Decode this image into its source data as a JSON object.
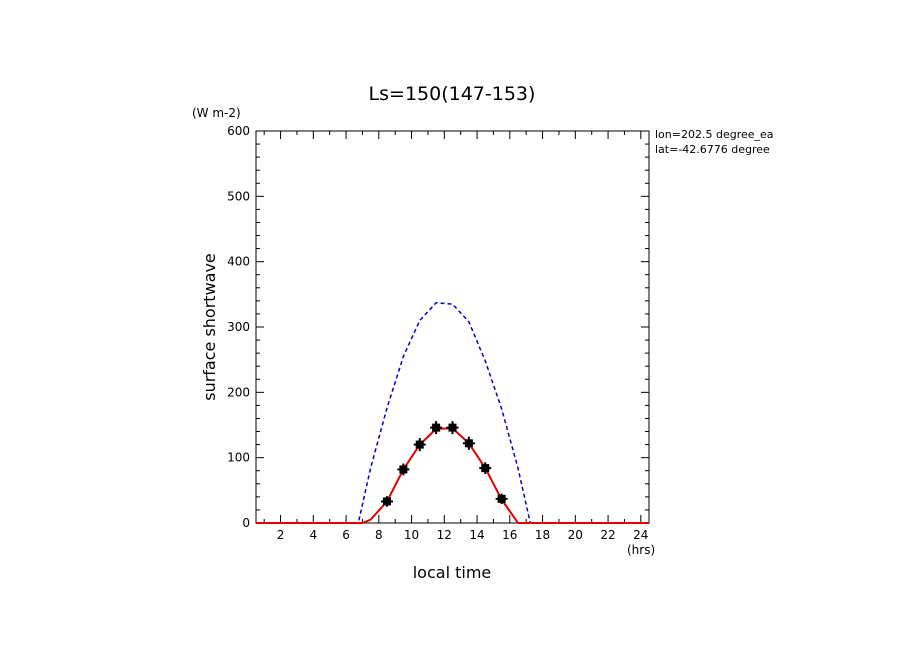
{
  "chart_data": {
    "type": "line",
    "title": "Ls=150(147-153)",
    "xlabel": "local time",
    "xunit": "(hrs)",
    "ylabel": "surface shortwave",
    "yunit": "(W m-2)",
    "annotations": [
      "lon=202.5 degree_ea",
      "lat=-42.6776 degree"
    ],
    "xlim": [
      0.5,
      24.5
    ],
    "ylim": [
      0,
      600
    ],
    "xticks": [
      2,
      4,
      6,
      8,
      10,
      12,
      14,
      16,
      18,
      20,
      22,
      24
    ],
    "yticks": [
      0,
      100,
      200,
      300,
      400,
      500,
      600
    ],
    "grid": false,
    "series": [
      {
        "style": "dashed",
        "color": "#0000cc",
        "x": [
          0.5,
          1,
          2,
          3,
          4,
          5,
          6,
          6.75,
          7.5,
          8.5,
          9.5,
          10.5,
          11.5,
          12.5,
          13.5,
          14.5,
          15.5,
          16.5,
          17.25,
          18,
          19,
          20,
          21,
          22,
          23,
          24,
          24.5
        ],
        "y": [
          0,
          0,
          0,
          0,
          0,
          0,
          0,
          0,
          84,
          176,
          255,
          310,
          337,
          335,
          308,
          248,
          175,
          84,
          0,
          0,
          0,
          0,
          0,
          0,
          0,
          0,
          0
        ]
      },
      {
        "style": "solid",
        "color": "#e00000",
        "x": [
          0.5,
          1,
          2,
          3,
          4,
          5,
          6,
          7,
          7.5,
          8.5,
          9.5,
          10.5,
          11.5,
          12.5,
          13.5,
          14.5,
          15.5,
          16.5,
          17,
          18,
          19,
          20,
          21,
          22,
          23,
          24,
          24.5
        ],
        "y": [
          0,
          0,
          0,
          0,
          0,
          0,
          0,
          0,
          5,
          33,
          82,
          120,
          144,
          145,
          122,
          84,
          36,
          0,
          0,
          0,
          0,
          0,
          0,
          0,
          0,
          0,
          0
        ]
      }
    ],
    "observations": {
      "color": "#000000",
      "x": [
        8.5,
        9.5,
        10.5,
        11.5,
        12.5,
        13.5,
        14.5,
        15.5
      ],
      "y": [
        33,
        82,
        120,
        146,
        146,
        122,
        84,
        37
      ],
      "err": [
        8,
        9,
        10,
        10,
        10,
        10,
        9,
        8
      ]
    }
  }
}
